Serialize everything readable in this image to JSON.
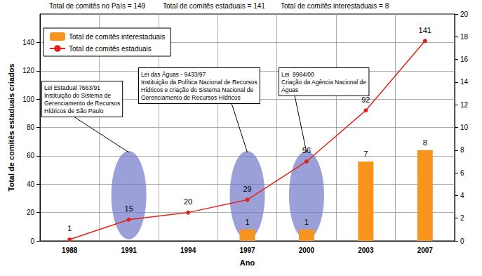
{
  "chart_data": {
    "type": "bar",
    "header": [
      "Total de comitês no País = 149",
      "Total de comitês estaduais = 141",
      "Total de comitês interestaduais = 8"
    ],
    "x_label": "Ano",
    "y_label": "Total de comitês estaduais criados",
    "categories": [
      "1988",
      "1991",
      "1994",
      "1997",
      "2000",
      "2003",
      "2007"
    ],
    "series": [
      {
        "name": "Total de comitês interestaduais",
        "type": "bar",
        "axis": "y2",
        "color": "#f7941d",
        "values": [
          null,
          null,
          null,
          1,
          1,
          7,
          8
        ]
      },
      {
        "name": "Total de comitês estaduais",
        "type": "line",
        "color": "#e2231a",
        "marker": "circle",
        "values": [
          1,
          15,
          20,
          29,
          56,
          92,
          141
        ]
      }
    ],
    "ylim": [
      0,
      160
    ],
    "yticks": [
      0,
      20,
      40,
      60,
      80,
      100,
      120,
      140
    ],
    "y2lim": [
      0,
      20
    ],
    "y2ticks": [
      0,
      2,
      4,
      6,
      8,
      10,
      12,
      14,
      16,
      18,
      20
    ],
    "grid": true,
    "legend": "upper left",
    "data_labels": true,
    "annotations": [
      {
        "x": "1991",
        "lines": [
          "Lei Estadual 7663/91",
          "Instituição do Sistema de",
          "Gerenciamento de Recursos",
          "Hídricos de São Paulo"
        ]
      },
      {
        "x": "1997",
        "lines": [
          "Lei das Águas - 9433/97",
          "Instituição da Política Nacional de Recursos",
          "Hídricos e criação do Sistema Nacional de",
          "Gerenciamento de Recursos Hídricos"
        ]
      },
      {
        "x": "2000",
        "lines": [
          "Lei  9984/00",
          "Criação da Agência Nacional de",
          "Águas"
        ]
      }
    ]
  }
}
